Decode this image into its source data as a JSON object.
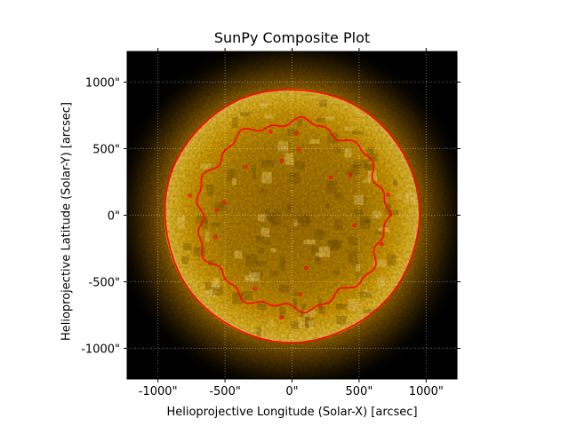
{
  "chart_data": {
    "type": "heatmap",
    "title": "SunPy Composite Plot",
    "xlabel": "Helioprojective Longitude (Solar-X) [arcsec]",
    "ylabel": "Helioprojective Latitude (Solar-Y) [arcsec]",
    "xlim": [
      -1230,
      1230
    ],
    "ylim": [
      -1230,
      1230
    ],
    "grid": true,
    "x_ticks": [
      {
        "value": -1000,
        "label": "-1000\""
      },
      {
        "value": -500,
        "label": "-500\""
      },
      {
        "value": 0,
        "label": "0\""
      },
      {
        "value": 500,
        "label": "500\""
      },
      {
        "value": 1000,
        "label": "1000\""
      }
    ],
    "y_ticks": [
      {
        "value": 1000,
        "label": "1000\""
      },
      {
        "value": 500,
        "label": "500\""
      },
      {
        "value": 0,
        "label": "0\""
      },
      {
        "value": -500,
        "label": "-500\""
      },
      {
        "value": -1000,
        "label": "-1000\""
      }
    ],
    "layers": [
      {
        "kind": "image",
        "colormap": "sdoaia171",
        "description": "solar disk intensity"
      },
      {
        "kind": "contour",
        "color": "#ff0000",
        "approx_outer_radius_arcsec": 950,
        "approx_inner_radius_arcsec": 700
      }
    ],
    "colors": {
      "contour": "#ff0000",
      "disk": "#e6a200",
      "background": "#000000"
    }
  }
}
